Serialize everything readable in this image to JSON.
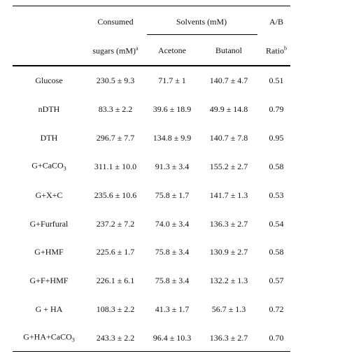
{
  "table": {
    "header": {
      "consumed": "Consumed",
      "solvents": "Solvents (mM)",
      "ab": "A/B",
      "sugars": {
        "text": "sugars (mM)",
        "sup": "a"
      },
      "acetone": "Acetone",
      "butanol": "Butanol",
      "ratio": {
        "text": "Ratio",
        "sup": "b"
      }
    },
    "rows": [
      [
        "Glucose",
        "230.5 ± 9.3",
        "71.7 ± 1",
        "140.7 ± 4.7",
        "0.51"
      ],
      [
        "nDTH",
        "83.3 ± 2.2",
        "39.6 ± 18.9",
        "49.9 ± 14.8",
        "0.79"
      ],
      [
        "DTH",
        "296.7 ± 7.7",
        "134.8 ± 9.9",
        "140.7 ± 7.8",
        "0.95"
      ],
      [
        {
          "text": "G+CaCO",
          "sub": "3"
        },
        "311.1 ± 10.0",
        "91.3 ± 3.4",
        "155.2 ± 2.7",
        "0.58"
      ],
      [
        "G+X+C",
        "235.6 ± 10.6",
        "75.8 ± 1.7",
        "141.7 ± 1.3",
        "0.53"
      ],
      [
        "G+Furfural",
        "237.2 ± 7.2",
        "74.0 ± 3.4",
        "136.3 ± 2.7",
        "0.54"
      ],
      [
        "G+HMF",
        "225.6 ± 1.7",
        "75.8 ± 3.4",
        "130.9 ± 2.7",
        "0.58"
      ],
      [
        "G+F+HMF",
        "226.1 ± 6.1",
        "75.8 ± 3.4",
        "132.2 ± 1.3",
        "0.57"
      ],
      [
        "G + HA",
        "108.3 ± 2.2",
        "41.3 ± 1.7",
        "56.7 ± 1.3",
        "0.72"
      ],
      [
        {
          "text": "G+HA+CaCO",
          "sub": "3"
        },
        "243.3 ± 2.2",
        "96.4 ± 10.3",
        "136.3 ± 2.7",
        "0.70"
      ]
    ]
  }
}
